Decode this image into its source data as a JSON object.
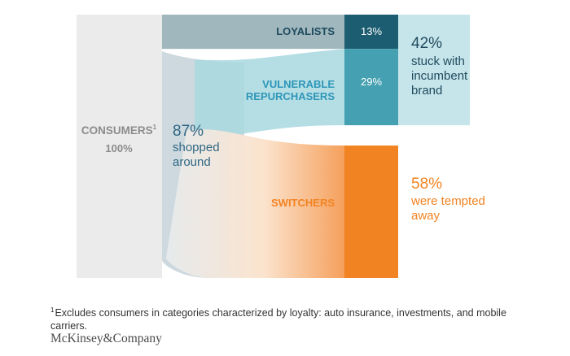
{
  "chart_data": {
    "type": "sankey",
    "source": {
      "label": "CONSUMERS",
      "footnote_marker": "1",
      "percent_label": "100%",
      "value": 100
    },
    "shopped": {
      "percent_label": "87%",
      "text_lines": [
        "shopped",
        "around"
      ],
      "value": 87
    },
    "segments": [
      {
        "name": "LOYALISTS",
        "value": 13,
        "value_label": "13%"
      },
      {
        "name": "VULNERABLE REPURCHASERS",
        "name_lines": [
          "VULNERABLE",
          "REPURCHASERS"
        ],
        "value": 29,
        "value_label": "29%"
      },
      {
        "name": "SWITCHERS",
        "value": 58,
        "value_label": ""
      }
    ],
    "outcomes": [
      {
        "percent_label": "42%",
        "text_lines": [
          "stuck with",
          "incumbent",
          "brand"
        ],
        "value": 42
      },
      {
        "percent_label": "58%",
        "text_lines": [
          "were tempted",
          "away"
        ],
        "value": 58
      }
    ]
  },
  "footnote": {
    "marker": "1",
    "text": "Excludes consumers in categories characterized by loyalty: auto insurance, investments, and mobile carriers."
  },
  "brand": "McKinsey&Company",
  "colors": {
    "consumers_bar": "#ebebeb",
    "consumers_text": "#8c8c8c",
    "loyalist_band": "#9fb7bd",
    "loyalist_box": "#1c5d71",
    "loyalist_text": "#1e4a5e",
    "shopped_band": "#cdd9de",
    "shopped_text": "#2f6785",
    "vulnerable_band": "#a8d8df",
    "vulnerable_box": "#45a1b1",
    "vulnerable_text": "#2e96b8",
    "stuck_band": "#c6e5ea",
    "stuck_text": "#1e4a5e",
    "switcher_box": "#f28322",
    "switcher_text": "#f28322",
    "white": "#ffffff"
  }
}
